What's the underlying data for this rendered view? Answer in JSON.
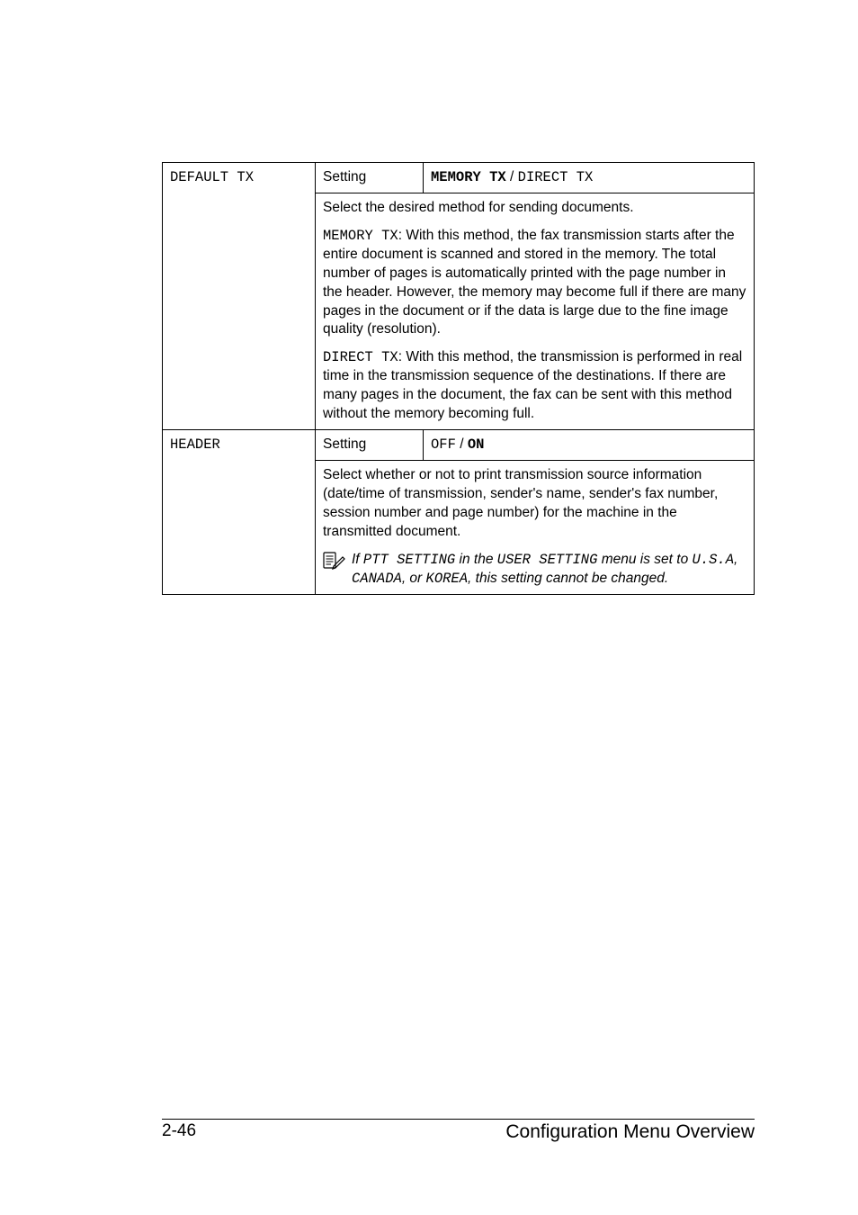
{
  "table": {
    "rows": [
      {
        "param": "DEFAULT TX",
        "setting_label": "Setting",
        "setting_value_html": {
          "pre": "MEMORY TX",
          "sep": " / ",
          "post": "DIRECT TX",
          "pre_bold": true,
          "pre_mono": true,
          "post_mono": true
        }
      },
      {
        "desc_paragraphs": [
          {
            "type": "plain",
            "text": "Select the desired method for sending documents."
          },
          {
            "type": "lead_mono",
            "lead": "MEMORY TX",
            "rest": ": With this method, the fax transmission starts after the entire document is scanned and stored in the memory. The total number of pages is automatically printed with the page number in the header. However, the memory may become full if there are many pages in the document or if the data is large due to the fine image quality (resolution)."
          },
          {
            "type": "lead_mono",
            "lead": "DIRECT TX",
            "rest": ": With this method, the transmission is performed in real time in the transmission sequence of the destinations. If there are many pages in the document, the fax can be sent with this method without the memory becoming full."
          }
        ]
      },
      {
        "param": "HEADER",
        "setting_label": "Setting",
        "setting_value_html": {
          "pre": "OFF",
          "sep": " / ",
          "post": "ON",
          "post_bold": true,
          "pre_mono": true,
          "post_mono": true
        }
      },
      {
        "desc_paragraphs": [
          {
            "type": "plain",
            "text": "Select whether or not to print transmission source information (date/time of transmission, sender's name, sender's fax number, session number and page number) for the machine in the transmitted document."
          },
          {
            "type": "note",
            "segments": [
              {
                "t": "If ",
                "i": true
              },
              {
                "t": "PTT SETTING",
                "i": true,
                "m": true
              },
              {
                "t": " in the ",
                "i": true
              },
              {
                "t": "USER SETTING",
                "i": true,
                "m": true
              },
              {
                "t": " menu is set to ",
                "i": true
              },
              {
                "t": "U.S.A",
                "i": true,
                "m": true
              },
              {
                "t": ", ",
                "i": true
              },
              {
                "t": "CANADA",
                "i": true,
                "m": true
              },
              {
                "t": ", or ",
                "i": true
              },
              {
                "t": "KOREA",
                "i": true,
                "m": true
              },
              {
                "t": ", this setting cannot be changed.",
                "i": true
              }
            ]
          }
        ]
      }
    ]
  },
  "footer": {
    "page": "2-46",
    "title": "Configuration Menu Overview"
  }
}
